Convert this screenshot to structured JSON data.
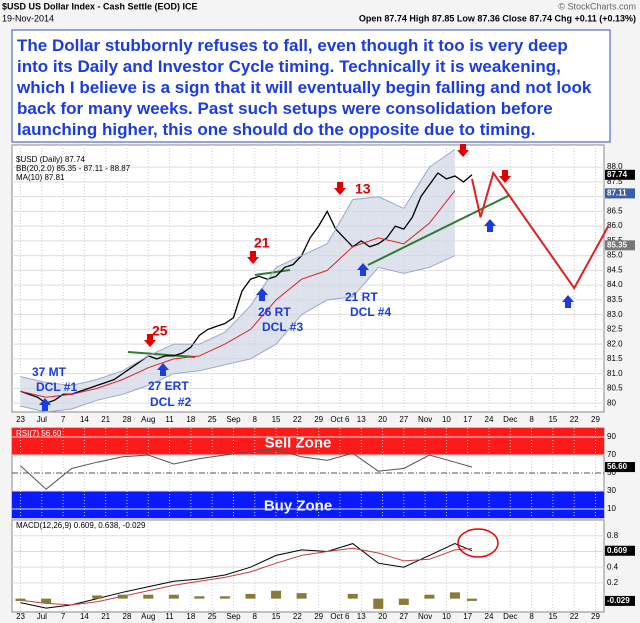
{
  "header": {
    "symbol": "$USD US Dollar Index - Cash Settle (EOD) ICE",
    "date": "19-Nov-2014",
    "quote": "Open 87.74 High 87.85 Low 87.36 Close 87.74 Chg +0.11 (+0.13%)",
    "credit": "© StockCharts.com"
  },
  "commentary": [
    "The Dollar stubbornly refuses to fall, even though it too is very deep",
    "into its Daily and Investor Cycle timing.  Technically it is weakening,",
    "which I believe is a sign that it will eventually begin falling and not look",
    "back for many weeks.  Past such setups were consolidation before",
    "launching higher, this one should do the opposite due to timing."
  ],
  "annotations": [
    "25",
    "21",
    "13",
    "37 MT",
    "DCL #1",
    "27 ERT",
    "DCL #2",
    "26 RT",
    "DCL #3",
    "21 RT",
    "DCL #4"
  ],
  "xlim": [
    -2,
    137
  ],
  "xticks": [
    {
      "value": 0,
      "label": "23"
    },
    {
      "value": 5,
      "label": "Jul"
    },
    {
      "value": 10,
      "label": "7"
    },
    {
      "value": 15,
      "label": "14"
    },
    {
      "value": 20,
      "label": "21"
    },
    {
      "value": 25,
      "label": "28"
    },
    {
      "value": 30,
      "label": "Aug"
    },
    {
      "value": 35,
      "label": "11"
    },
    {
      "value": 40,
      "label": "18"
    },
    {
      "value": 45,
      "label": "25"
    },
    {
      "value": 50,
      "label": "Sep"
    },
    {
      "value": 55,
      "label": "8"
    },
    {
      "value": 60,
      "label": "15"
    },
    {
      "value": 65,
      "label": "22"
    },
    {
      "value": 70,
      "label": "29"
    },
    {
      "value": 75,
      "label": "Oct 6"
    },
    {
      "value": 80,
      "label": "13"
    },
    {
      "value": 85,
      "label": "20"
    },
    {
      "value": 90,
      "label": "27"
    },
    {
      "value": 95,
      "label": "Nov"
    },
    {
      "value": 100,
      "label": "10"
    },
    {
      "value": 105,
      "label": "17"
    },
    {
      "value": 110,
      "label": "24"
    },
    {
      "value": 115,
      "label": "Dec"
    },
    {
      "value": 120,
      "label": "8"
    },
    {
      "value": 125,
      "label": "15"
    },
    {
      "value": 130,
      "label": "22"
    },
    {
      "value": 135,
      "label": "29"
    }
  ],
  "chart_data": [
    {
      "type": "line",
      "legend": [
        "$USD (Daily) 87.74",
        "BB(20,2.0) 85.35 - 87.11 - 88.87",
        "MA(10) 87.81"
      ],
      "ylim": [
        79.7,
        88.75
      ],
      "yticks": [
        80,
        80.5,
        {
          "value": 81,
          "label": "81.0"
        },
        81.5,
        {
          "value": 82,
          "label": "82.0"
        },
        82.5,
        {
          "value": 83,
          "label": "83.0"
        },
        83.5,
        {
          "value": 84,
          "label": "84.0"
        },
        84.5,
        {
          "value": 85,
          "label": "85.0"
        },
        85.5,
        {
          "value": 86,
          "label": "86.0"
        },
        86.5,
        {
          "value": 87,
          "label": "87.0"
        },
        87.5,
        {
          "value": 88,
          "label": "88.0"
        }
      ],
      "tags": [
        87.74,
        87.11,
        85.35
      ],
      "tag_colors": [
        "#000000",
        "#3a5fa8",
        "#777777"
      ],
      "series": [
        {
          "name": "$USD",
          "color": "#000000",
          "x": [
            0,
            2,
            4,
            6,
            8,
            10,
            12,
            14,
            16,
            18,
            20,
            22,
            24,
            26,
            28,
            30,
            32,
            34,
            36,
            38,
            40,
            42,
            44,
            46,
            48,
            50,
            52,
            54,
            56,
            58,
            60,
            62,
            64,
            66,
            68,
            70,
            72,
            74,
            76,
            78,
            80,
            82,
            84,
            86,
            88,
            90,
            92,
            94,
            96,
            98,
            100,
            102,
            104,
            106
          ],
          "values": [
            80.4,
            80.3,
            80.2,
            80.0,
            80.1,
            80.3,
            80.3,
            80.4,
            80.5,
            80.6,
            80.7,
            80.8,
            81.0,
            81.2,
            81.4,
            81.6,
            81.5,
            81.6,
            81.6,
            81.7,
            81.9,
            82.3,
            82.5,
            82.6,
            82.7,
            82.9,
            83.8,
            84.2,
            84.3,
            84.2,
            84.3,
            84.6,
            84.7,
            85.0,
            85.6,
            86.0,
            86.5,
            85.9,
            85.6,
            85.3,
            85.5,
            85.3,
            85.4,
            85.6,
            86.0,
            85.9,
            86.3,
            87.0,
            87.4,
            87.8,
            87.6,
            87.7,
            87.5,
            87.74
          ]
        },
        {
          "name": "BB upper",
          "color": "#9aa9c9",
          "x": [
            0,
            6,
            12,
            18,
            24,
            30,
            36,
            42,
            48,
            54,
            60,
            66,
            72,
            78,
            84,
            90,
            96,
            102
          ],
          "values": [
            80.9,
            80.7,
            80.6,
            80.8,
            81.1,
            81.6,
            82.0,
            82.0,
            82.4,
            83.3,
            84.6,
            85.0,
            85.4,
            86.9,
            87.0,
            86.6,
            88.0,
            88.6
          ]
        },
        {
          "name": "BB lower",
          "color": "#9aa9c9",
          "x": [
            0,
            6,
            12,
            18,
            24,
            30,
            36,
            42,
            48,
            54,
            60,
            66,
            72,
            78,
            84,
            90,
            96,
            102
          ],
          "values": [
            79.9,
            79.7,
            79.8,
            80.1,
            80.3,
            80.6,
            81.0,
            81.1,
            81.3,
            81.5,
            82.0,
            83.0,
            83.5,
            83.6,
            84.6,
            84.4,
            84.6,
            85.0
          ]
        },
        {
          "name": "MA(10)",
          "color": "#e02020",
          "x": [
            0,
            6,
            12,
            18,
            24,
            30,
            36,
            42,
            48,
            54,
            60,
            66,
            72,
            78,
            84,
            90,
            96,
            102
          ],
          "values": [
            80.4,
            80.2,
            80.3,
            80.5,
            80.8,
            81.2,
            81.5,
            81.6,
            82.0,
            82.5,
            83.5,
            84.2,
            84.5,
            85.3,
            85.6,
            85.4,
            86.1,
            87.2
          ]
        },
        {
          "name": "Projection",
          "color": "#e02020",
          "x": [
            106,
            108,
            111,
            130,
            138
          ],
          "values": [
            87.6,
            86.3,
            87.8,
            83.9,
            86.0
          ]
        }
      ]
    },
    {
      "type": "line",
      "legend": "RSI(7) 56.60",
      "ylim": [
        0,
        100
      ],
      "yticks": [
        10,
        30,
        50,
        70,
        90
      ],
      "tags": [
        {
          "value": 56.6,
          "label": "56.60"
        }
      ],
      "zones": [
        {
          "label": "Sell Zone",
          "from": 70,
          "to": 100,
          "color": "#ff1a1a"
        },
        {
          "label": "Buy Zone",
          "from": 0,
          "to": 30,
          "color": "#0a1aff"
        }
      ],
      "series": [
        {
          "name": "RSI(7)",
          "color": "#555555",
          "x": [
            0,
            6,
            12,
            18,
            24,
            30,
            36,
            42,
            48,
            54,
            60,
            66,
            72,
            78,
            84,
            90,
            96,
            102,
            106
          ],
          "values": [
            58,
            32,
            55,
            62,
            68,
            70,
            60,
            66,
            70,
            74,
            76,
            68,
            64,
            72,
            52,
            55,
            70,
            62,
            56.6
          ]
        }
      ]
    },
    {
      "type": "line",
      "legend": "MACD(12,26,9) 0.609, 0.638, -0.029",
      "ylim": [
        -0.17,
        1.0
      ],
      "yticks": [
        0.2,
        0.4,
        0.6,
        0.8
      ],
      "tags": [
        0.609,
        -0.029
      ],
      "series": [
        {
          "name": "MACD",
          "color": "#000000",
          "x": [
            0,
            6,
            12,
            18,
            24,
            30,
            36,
            42,
            48,
            54,
            60,
            66,
            72,
            78,
            84,
            90,
            96,
            102,
            106
          ],
          "values": [
            -0.05,
            -0.12,
            -0.08,
            0.0,
            0.08,
            0.15,
            0.22,
            0.25,
            0.3,
            0.4,
            0.55,
            0.62,
            0.6,
            0.7,
            0.45,
            0.4,
            0.55,
            0.7,
            0.609
          ]
        },
        {
          "name": "Signal",
          "color": "#c04040",
          "x": [
            0,
            6,
            12,
            18,
            24,
            30,
            36,
            42,
            48,
            54,
            60,
            66,
            72,
            78,
            84,
            90,
            96,
            102,
            106
          ],
          "values": [
            -0.02,
            -0.06,
            -0.08,
            -0.04,
            0.03,
            0.1,
            0.17,
            0.22,
            0.27,
            0.34,
            0.45,
            0.55,
            0.6,
            0.64,
            0.58,
            0.48,
            0.5,
            0.62,
            0.638
          ]
        },
        {
          "name": "Histogram",
          "type": "bar",
          "color": "#8a7a3a",
          "x": [
            0,
            6,
            12,
            18,
            24,
            30,
            36,
            42,
            48,
            54,
            60,
            66,
            72,
            78,
            84,
            90,
            96,
            102,
            106
          ],
          "values": [
            -0.03,
            -0.06,
            0,
            0.04,
            0.05,
            0.05,
            0.05,
            0.03,
            0.03,
            0.06,
            0.1,
            0.07,
            0,
            0.06,
            -0.13,
            -0.08,
            0.05,
            0.08,
            -0.029
          ]
        }
      ]
    }
  ]
}
